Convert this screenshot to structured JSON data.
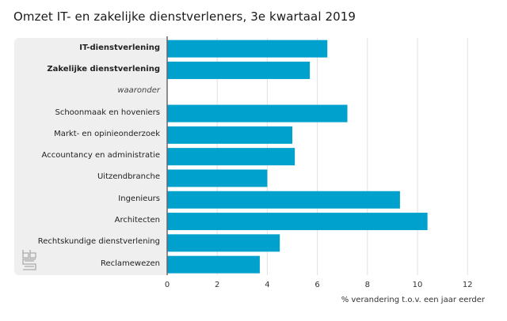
{
  "chart_data": {
    "type": "bar",
    "orientation": "horizontal",
    "title": "Omzet IT- en zakelijke dienstverleners, 3e kwartaal 2019",
    "xlabel": "% verandering t.o.v. een jaar eerder",
    "ylabel": "",
    "xlim": [
      0,
      12
    ],
    "xticks": [
      "0",
      "2",
      "4",
      "6",
      "8",
      "10",
      "12"
    ],
    "grid": true,
    "bar_color": "#00a1cd",
    "categories": [
      {
        "label": "IT-dienstverlening",
        "value": 6.4,
        "style": "bold"
      },
      {
        "label": "Zakelijke dienstverlening",
        "value": 5.7,
        "style": "bold"
      },
      {
        "label": "waaronder",
        "value": null,
        "style": "italic"
      },
      {
        "label": "Schoonmaak en hoveniers",
        "value": 7.2,
        "style": "normal"
      },
      {
        "label": "Markt- en opinieonderzoek",
        "value": 5.0,
        "style": "normal"
      },
      {
        "label": "Accountancy en administratie",
        "value": 5.1,
        "style": "normal"
      },
      {
        "label": "Uitzendbranche",
        "value": 4.0,
        "style": "normal"
      },
      {
        "label": "Ingenieurs",
        "value": 9.3,
        "style": "normal"
      },
      {
        "label": "Architecten",
        "value": 10.4,
        "style": "normal"
      },
      {
        "label": "Rechtskundige dienstverlening",
        "value": 4.5,
        "style": "normal"
      },
      {
        "label": "Reclamewezen",
        "value": 3.7,
        "style": "normal"
      }
    ]
  },
  "logo": "cbs-logo-icon"
}
